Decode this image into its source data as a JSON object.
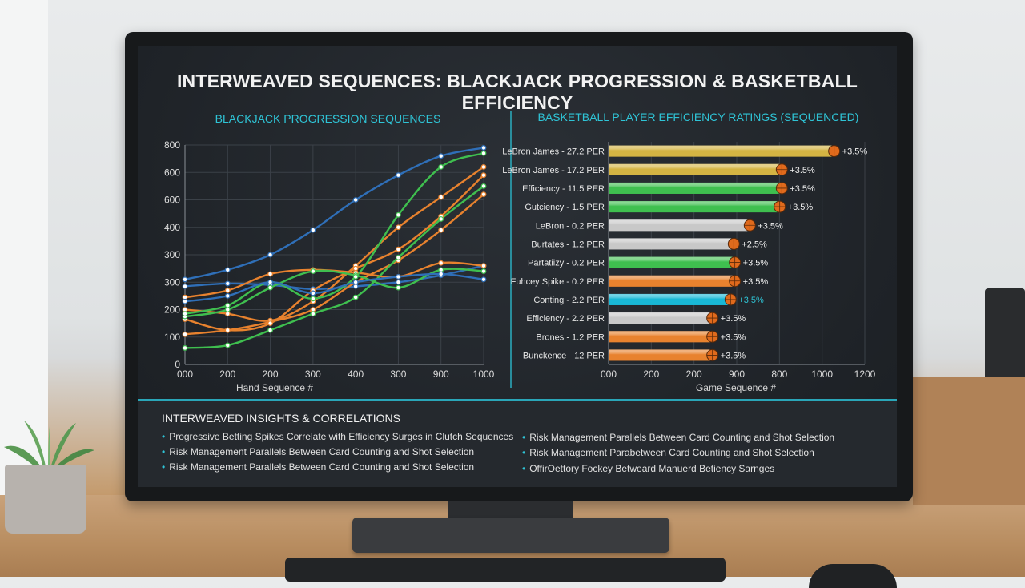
{
  "title": "INTERWEAVED SEQUENCES: BLACKJACK PROGRESSION & BASKETBALL EFFICIENCY",
  "colors": {
    "accent": "#2fc4d6",
    "gold": "#d4b443",
    "green": "#3fbf4f",
    "orange": "#e8822e",
    "silver": "#c8c8c8",
    "cyan": "#19b8d6",
    "blue": "#2f6fb8"
  },
  "chart_data": [
    {
      "type": "line",
      "title": "BLACKJACK PROGRESSION SEQUENCES",
      "xlabel": "Hand Sequence #",
      "ylabel": "",
      "x_ticks": [
        "000",
        "200",
        "200",
        "300",
        "400",
        "300",
        "900",
        "1000"
      ],
      "y_ticks": [
        "0",
        "100",
        "200",
        "300",
        "300",
        "400",
        "600",
        "600",
        "800"
      ],
      "ylim": [
        0,
        800
      ],
      "grid": true,
      "series": [
        {
          "color": "#2f6fb8",
          "values": [
            310,
            345,
            400,
            490,
            600,
            690,
            760,
            790
          ]
        },
        {
          "color": "#2f6fb8",
          "values": [
            285,
            295,
            290,
            275,
            285,
            300,
            325,
            360
          ]
        },
        {
          "color": "#e8822e",
          "values": [
            245,
            270,
            330,
            345,
            335,
            320,
            370,
            360
          ]
        },
        {
          "color": "#e8822e",
          "values": [
            200,
            185,
            160,
            230,
            360,
            500,
            610,
            720
          ]
        },
        {
          "color": "#e8822e",
          "values": [
            110,
            125,
            155,
            200,
            300,
            380,
            490,
            620
          ]
        },
        {
          "color": "#e8822e",
          "values": [
            165,
            125,
            150,
            270,
            350,
            420,
            540,
            690
          ]
        },
        {
          "color": "#3fbf4f",
          "values": [
            60,
            70,
            125,
            185,
            245,
            390,
            530,
            650
          ]
        },
        {
          "color": "#3fbf4f",
          "values": [
            175,
            200,
            280,
            340,
            325,
            280,
            345,
            340
          ]
        },
        {
          "color": "#3fbf4f",
          "values": [
            185,
            215,
            300,
            240,
            320,
            545,
            720,
            770
          ]
        },
        {
          "color": "#2f6fb8",
          "values": [
            230,
            250,
            300,
            260,
            300,
            320,
            330,
            310
          ]
        }
      ]
    },
    {
      "type": "bar",
      "orientation": "horizontal",
      "title": "BASKETBALL PLAYER EFFICIENCY RATINGS (SEQUENCED)",
      "xlabel": "Game Sequence #",
      "x_ticks": [
        "000",
        "200",
        "200",
        "900",
        "800",
        "1000",
        "1200"
      ],
      "xlim": [
        0,
        1200
      ],
      "grid": true,
      "categories": [
        "LeBron James - 27.2 PER",
        "LeBron James - 17.2 PER",
        "Efficiency - 11.5 PER",
        "Gutciency - 1.5 PER",
        "LeBron - 0.2 PER",
        "Burtates - 1.2 PER",
        "Partatiizy - 0.2 PER",
        "Fuhcey Spike - 0.2 PER",
        "Conting - 2.2 PER",
        "Efficiency - 2.2 PER",
        "Brones - 1.2 PER",
        "Bunckence - 12 PER"
      ],
      "values": [
        1045,
        800,
        800,
        790,
        650,
        575,
        580,
        580,
        560,
        475,
        475,
        475
      ],
      "bar_colors": [
        "#d4b443",
        "#d4b443",
        "#3fbf4f",
        "#3fbf4f",
        "#c8c8c8",
        "#c8c8c8",
        "#3fbf4f",
        "#e8822e",
        "#19b8d6",
        "#c8c8c8",
        "#e8822e",
        "#e8822e"
      ],
      "annotations": [
        "+3.5%",
        "+3.5%",
        "+3.5%",
        "+3.5%",
        "+3.5%",
        "+2.5%",
        "+3.5%",
        "+3.5%",
        "+3.5%",
        "+3.5%",
        "+3.5%",
        "+3.5%"
      ]
    }
  ],
  "insights": {
    "title": "INTERWEAVED INSIGHTS & CORRELATIONS",
    "left": [
      "Progressive Betting Spikes Correlate with Efficiency Surges in Clutch Sequences",
      "Risk Management Parallels Between Card Counting and Shot Selection",
      "Risk Management Parallels Between Card Counting and Shot Selection"
    ],
    "right": [
      "Risk Management Parallels Between Card Counting and Shot Selection",
      "Risk Management Parabetween Card Counting and Shot Selection",
      "OffirOettory Fockey Betweard Manuerd Betiency Sarnges"
    ]
  }
}
